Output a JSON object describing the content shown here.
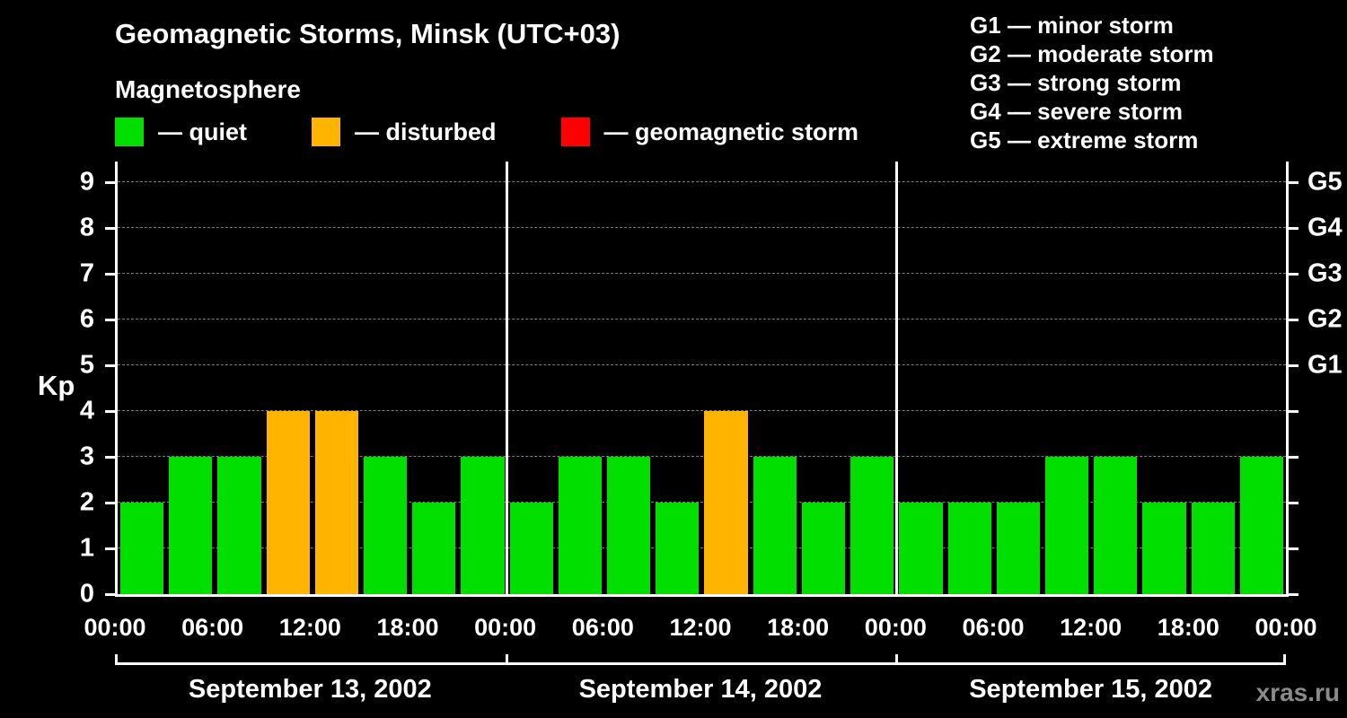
{
  "title": "Geomagnetic Storms, Minsk (UTC+03)",
  "subtitle": "Magnetosphere",
  "ylabel": "Kp",
  "watermark": "xras.ru",
  "legend": [
    {
      "label": "— quiet",
      "color": "#00df00",
      "icon": "quiet-swatch-icon"
    },
    {
      "label": "— disturbed",
      "color": "#ffb400",
      "icon": "disturbed-swatch-icon"
    },
    {
      "label": "— geomagnetic storm",
      "color": "#ff0000",
      "icon": "storm-swatch-icon"
    }
  ],
  "g_scale": [
    "G1 — minor storm",
    "G2 — moderate storm",
    "G3 — strong storm",
    "G4 — severe storm",
    "G5 — extreme storm"
  ],
  "chart_data": {
    "type": "bar",
    "title": "Geomagnetic Storms, Minsk (UTC+03)",
    "ylabel": "Kp",
    "ylim": [
      0,
      9
    ],
    "yticks": [
      0,
      1,
      2,
      3,
      4,
      5,
      6,
      7,
      8,
      9
    ],
    "x_time_ticks": [
      "00:00",
      "06:00",
      "12:00",
      "18:00"
    ],
    "bar_interval_hours": 3,
    "right_axis_labels": [
      {
        "kp": 5,
        "label": "G1"
      },
      {
        "kp": 6,
        "label": "G2"
      },
      {
        "kp": 7,
        "label": "G3"
      },
      {
        "kp": 8,
        "label": "G4"
      },
      {
        "kp": 9,
        "label": "G5"
      }
    ],
    "days": [
      {
        "date": "September 13, 2002",
        "values": [
          2,
          3,
          3,
          4,
          4,
          3,
          2,
          3
        ]
      },
      {
        "date": "September 14, 2002",
        "values": [
          2,
          3,
          3,
          2,
          4,
          3,
          2,
          3
        ]
      },
      {
        "date": "September 15, 2002",
        "values": [
          2,
          2,
          2,
          3,
          3,
          2,
          2,
          3
        ]
      }
    ],
    "colors": {
      "quiet": "#00df00",
      "disturbed": "#ffb400",
      "storm": "#ff0000"
    },
    "color_rule": {
      "quiet_max_kp": 3,
      "disturbed_max_kp": 4
    },
    "grid": "dashed horizontal at each Kp integer",
    "legend_position": "top"
  }
}
